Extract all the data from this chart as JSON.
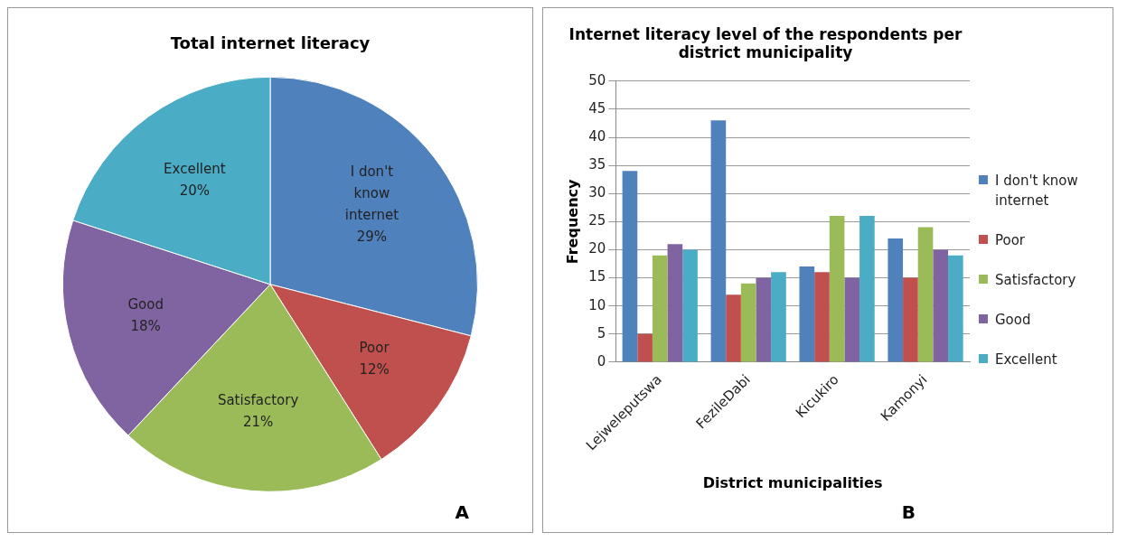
{
  "chart_data": [
    {
      "type": "pie",
      "title": "Total internet literacy",
      "categories": [
        "I don't know internet",
        "Poor",
        "Satisfactory",
        "Good",
        "Excellent"
      ],
      "values": [
        29,
        12,
        21,
        18,
        20
      ],
      "value_labels": [
        "29%",
        "12%",
        "21%",
        "18%",
        "20%"
      ],
      "colors": [
        "#4f81bd",
        "#c0504d",
        "#9bbb59",
        "#8064a2",
        "#4bacc6"
      ],
      "legend": false,
      "annotations": [
        "A"
      ]
    },
    {
      "type": "bar",
      "title": "Internet literacy level of the respondents per district municipality",
      "xlabel": "District municipalities",
      "ylabel": "Frequency",
      "categories": [
        "Lejweleputswa",
        "FezileDabi",
        "Kicukiro",
        "Kamonyi"
      ],
      "series": [
        {
          "name": "I don't know internet",
          "color": "#4f81bd",
          "values": [
            34,
            43,
            17,
            22
          ]
        },
        {
          "name": "Poor",
          "color": "#c0504d",
          "values": [
            5,
            12,
            16,
            15
          ]
        },
        {
          "name": "Satisfactory",
          "color": "#9bbb59",
          "values": [
            19,
            14,
            26,
            24
          ]
        },
        {
          "name": "Good",
          "color": "#8064a2",
          "values": [
            21,
            15,
            15,
            20
          ]
        },
        {
          "name": "Excellent",
          "color": "#4bacc6",
          "values": [
            20,
            16,
            26,
            19
          ]
        }
      ],
      "ylim": [
        0,
        50
      ],
      "yticks": [
        0,
        5,
        10,
        15,
        20,
        25,
        30,
        35,
        40,
        45,
        50
      ],
      "grid": "y",
      "legend": "right",
      "annotations": [
        "B"
      ]
    }
  ]
}
